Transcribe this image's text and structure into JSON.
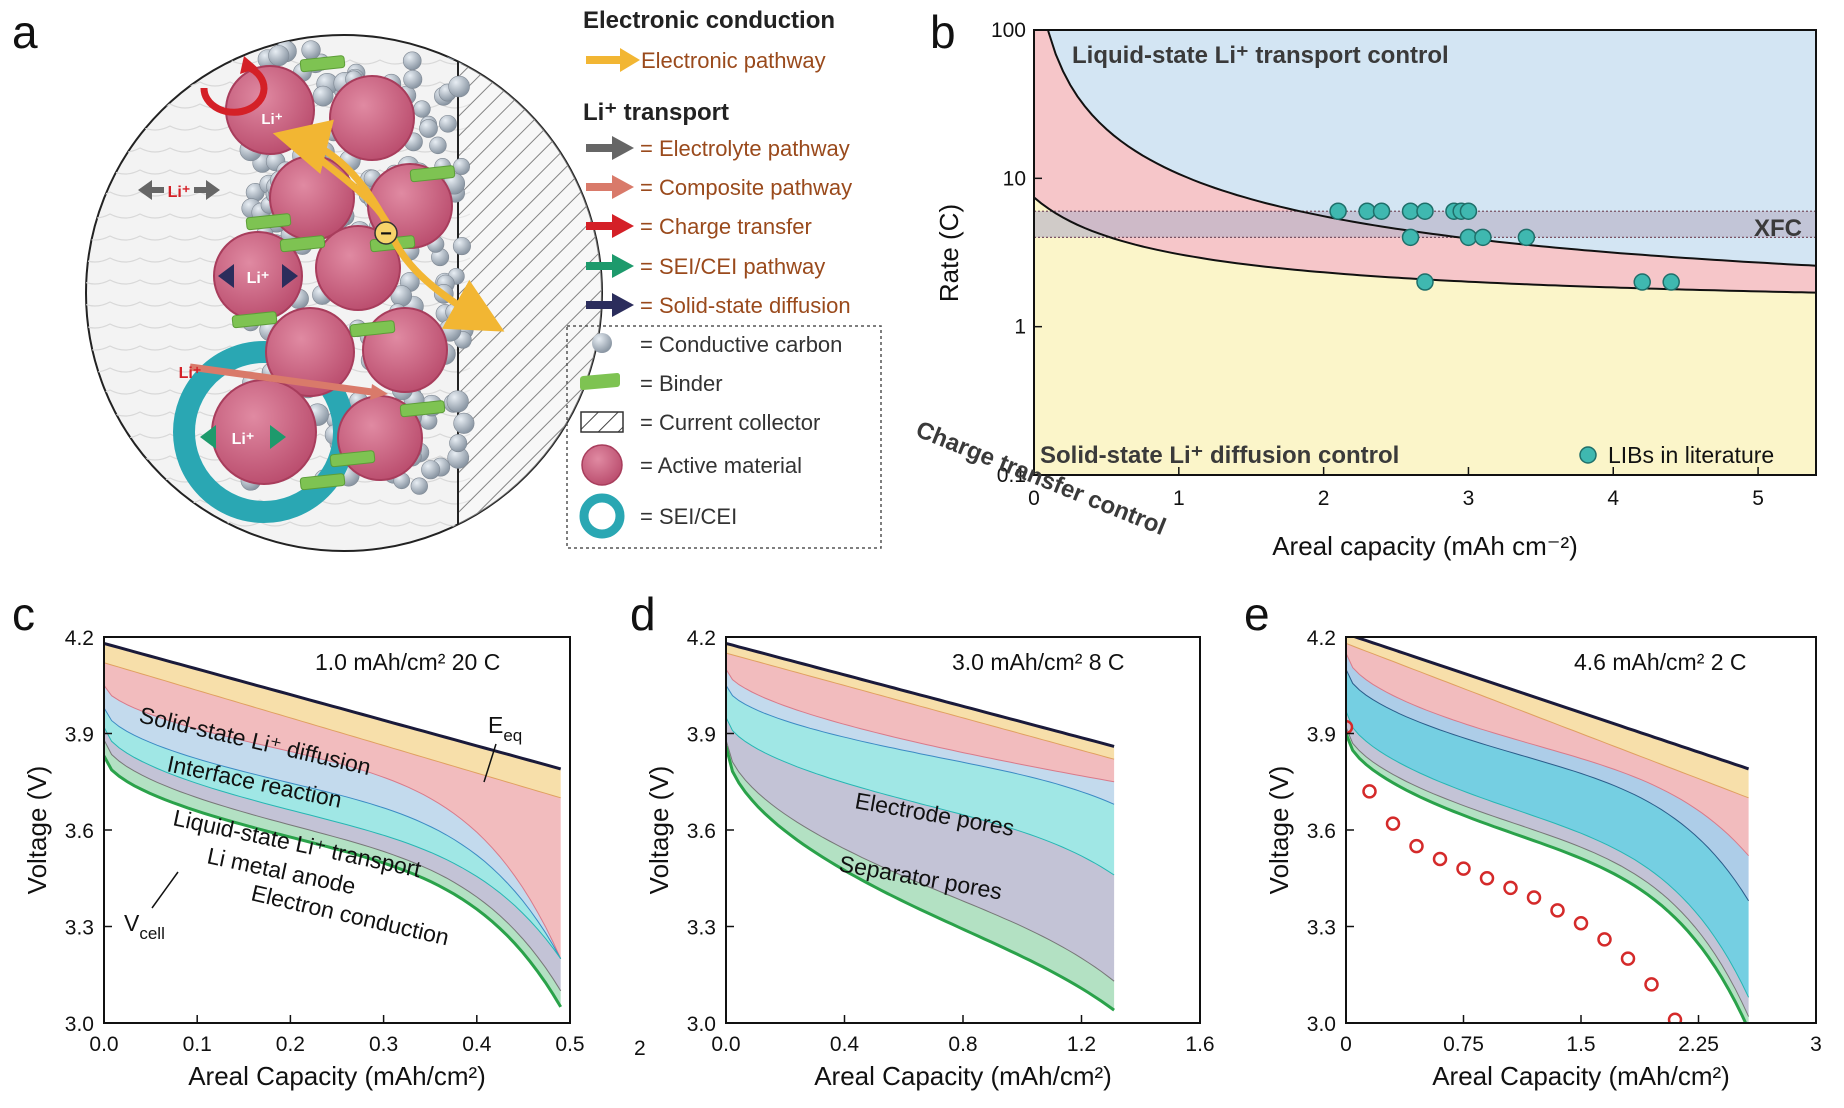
{
  "panels": {
    "a": "a",
    "b": "b",
    "c": "c",
    "d": "d",
    "e": "e"
  },
  "legend": {
    "electronic_title": "Electronic conduction",
    "electronic_pathway": "Electronic pathway",
    "li_title": "Li⁺ transport",
    "items": [
      {
        "label": "= Electrolyte pathway",
        "color": "#666666",
        "kind": "arrow"
      },
      {
        "label": "= Composite pathway",
        "color": "#d97a6a",
        "kind": "arrow"
      },
      {
        "label": "= Charge transfer",
        "color": "#d42027",
        "kind": "arrow"
      },
      {
        "label": "= SEI/CEI pathway",
        "color": "#1d9a6c",
        "kind": "arrow"
      },
      {
        "label": "= Solid-state diffusion",
        "color": "#2b2d5c",
        "kind": "arrow"
      }
    ],
    "components": [
      {
        "label": "= Conductive carbon"
      },
      {
        "label": "= Binder"
      },
      {
        "label": "= Current collector"
      },
      {
        "label": "= Active material"
      },
      {
        "label": "= SEI/CEI"
      }
    ]
  },
  "schematic": {
    "li_label": "Li⁺",
    "colors": {
      "active": "#c9607f",
      "carbon": "#aab4bf",
      "binder": "#7ec352",
      "sei": "#2aa7b3"
    }
  },
  "chart_data": [
    {
      "panel": "b",
      "type": "scatter",
      "xlabel": "Areal capacity (mAh cm⁻²)",
      "ylabel": "Rate (C)",
      "xlim": [
        0,
        5.4
      ],
      "ylim": [
        0.1,
        100
      ],
      "yscale": "log",
      "xticks": [
        "0",
        "1",
        "2",
        "3",
        "4",
        "5"
      ],
      "yticks": [
        "0.1",
        "1",
        "10",
        "100"
      ],
      "regions": {
        "liquid": "Liquid-state Li⁺ transport control",
        "charge": "Charge transfer control",
        "solid": "Solid-state Li⁺ diffusion control",
        "xfc": "XFC"
      },
      "xfc_band": [
        4,
        6
      ],
      "series": [
        {
          "name": "LIBs in literature",
          "color": "#3fb8b0",
          "x": [
            2.1,
            2.3,
            2.4,
            2.6,
            2.7,
            2.9,
            2.95,
            3.0,
            2.6,
            3.0,
            3.1,
            3.4,
            2.7,
            4.2,
            4.4
          ],
          "y": [
            6,
            6,
            6,
            6,
            6,
            6,
            6,
            6,
            4,
            4,
            4,
            4,
            2,
            2,
            2
          ]
        }
      ]
    },
    {
      "panel": "c",
      "type": "area",
      "xlabel": "Areal Capacity (mAh/cm²)",
      "ylabel": "Voltage (V)",
      "condition": "1.0 mAh/cm²  20 C",
      "xlim": [
        0,
        0.5
      ],
      "ylim": [
        3.0,
        4.2
      ],
      "xticks": [
        "0.0",
        "0.1",
        "0.2",
        "0.3",
        "0.4",
        "0.5"
      ],
      "yticks": [
        "3.0",
        "3.3",
        "3.6",
        "3.9",
        "4.2"
      ],
      "labels": {
        "eeq": "E",
        "eeq_sub": "eq",
        "vcell": "V",
        "vcell_sub": "cell",
        "l1": "Solid-state Li⁺ diffusion",
        "l2": "Interface reaction",
        "l3": "Liquid-state Li⁺ transport",
        "l4": "Li metal anode",
        "l5": "Electron conduction"
      }
    },
    {
      "panel": "d",
      "type": "area",
      "xlabel": "Areal Capacity (mAh/cm²)",
      "ylabel": "Voltage (V)",
      "condition": "3.0 mAh/cm²  8 C",
      "xlim": [
        0,
        1.6
      ],
      "ylim": [
        3.0,
        4.2
      ],
      "xticks": [
        "0.0",
        "0.4",
        "0.8",
        "1.2",
        "1.6"
      ],
      "yticks": [
        "3.0",
        "3.3",
        "3.6",
        "3.9",
        "4.2"
      ],
      "extra_tick": "2",
      "labels": {
        "l1": "Electrode pores",
        "l2": "Separator pores"
      }
    },
    {
      "panel": "e",
      "type": "area",
      "xlabel": "Areal Capacity (mAh/cm²)",
      "ylabel": "Voltage (V)",
      "condition": "4.6 mAh/cm²  2 C",
      "xlim": [
        0,
        3.0
      ],
      "ylim": [
        3.0,
        4.2
      ],
      "xticks": [
        "0",
        "0.75",
        "1.5",
        "2.25",
        "3"
      ],
      "yticks": [
        "3.0",
        "3.3",
        "3.6",
        "3.9",
        "4.2"
      ],
      "markers": {
        "color": "#d42a2a",
        "x": [
          0.0,
          0.15,
          0.3,
          0.45,
          0.6,
          0.75,
          0.9,
          1.05,
          1.2,
          1.35,
          1.5,
          1.65,
          1.8,
          1.95,
          2.1
        ],
        "y": [
          3.92,
          3.72,
          3.62,
          3.55,
          3.51,
          3.48,
          3.45,
          3.42,
          3.39,
          3.35,
          3.31,
          3.26,
          3.2,
          3.12,
          3.01
        ]
      }
    }
  ]
}
